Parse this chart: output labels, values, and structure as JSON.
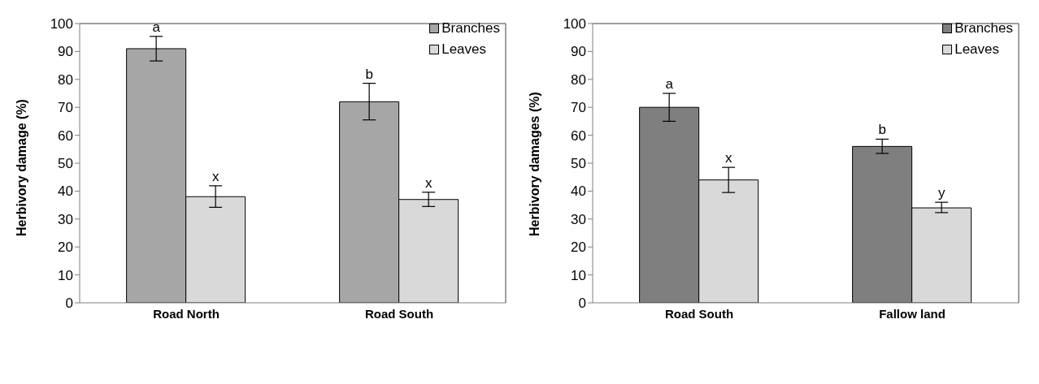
{
  "chart_data": [
    {
      "type": "bar",
      "ylabel": "Herbivory damage (%)",
      "categories": [
        "Road North",
        "Road South"
      ],
      "ylim": [
        0,
        100
      ],
      "yticks": [
        0,
        10,
        20,
        30,
        40,
        50,
        60,
        70,
        80,
        90,
        100
      ],
      "grid": false,
      "legend": "top right",
      "series": [
        {
          "name": "Branches",
          "color": "#a6a6a6",
          "values": [
            91,
            72
          ],
          "errors": [
            [
              86.6,
              95.4
            ],
            [
              65.5,
              78.6
            ]
          ]
        },
        {
          "name": "Leaves",
          "color": "#d9d9d9",
          "values": [
            38,
            37
          ],
          "errors": [
            [
              34.2,
              41.9
            ],
            [
              34.5,
              39.6
            ]
          ]
        }
      ],
      "annotations": [
        "a",
        "x",
        "b",
        "x"
      ]
    },
    {
      "type": "bar",
      "ylabel": "Herbivory damages (%)",
      "categories": [
        "Road South",
        "Fallow land"
      ],
      "ylim": [
        0,
        100
      ],
      "yticks": [
        0,
        10,
        20,
        30,
        40,
        50,
        60,
        70,
        80,
        90,
        100
      ],
      "grid": false,
      "legend": "top right",
      "series": [
        {
          "name": "Branches",
          "color": "#7f7f7f",
          "values": [
            70,
            56
          ],
          "errors": [
            [
              65,
              75
            ],
            [
              53.5,
              58.6
            ]
          ]
        },
        {
          "name": "Leaves",
          "color": "#d9d9d9",
          "values": [
            44,
            34
          ],
          "errors": [
            [
              39.5,
              48.5
            ],
            [
              32.3,
              36
            ]
          ]
        }
      ],
      "annotations": [
        "a",
        "x",
        "b",
        "y"
      ]
    }
  ]
}
